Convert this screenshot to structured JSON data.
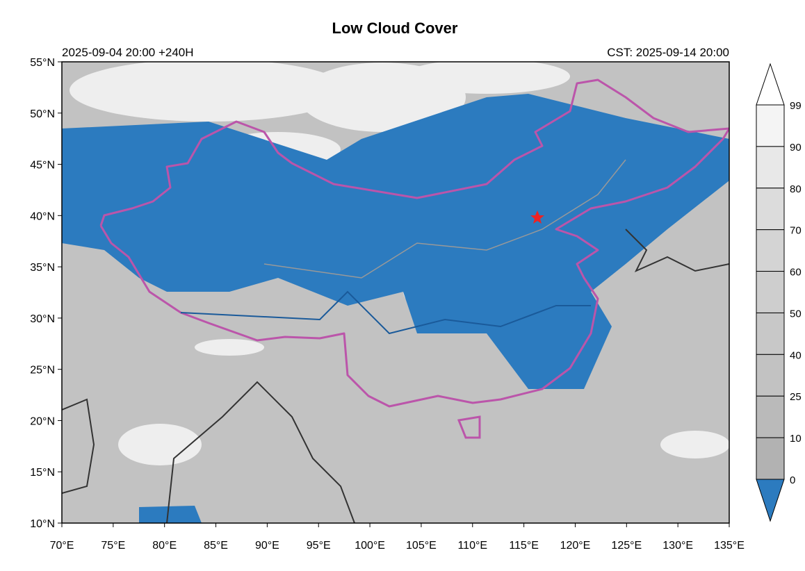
{
  "title": "Low Cloud Cover",
  "left_label": "2025-09-04 20:00 +240H",
  "right_label": "CST: 2025-09-14 20:00",
  "map": {
    "lat_labels": [
      "55°N",
      "50°N",
      "45°N",
      "40°N",
      "35°N",
      "30°N",
      "25°N",
      "20°N",
      "15°N",
      "10°N"
    ],
    "lon_labels": [
      "70°E",
      "75°E",
      "80°E",
      "85°E",
      "90°E",
      "95°E",
      "100°E",
      "105°E",
      "110°E",
      "115°E",
      "120°E",
      "125°E",
      "130°E",
      "135°E"
    ]
  },
  "colorbar": {
    "labels": [
      "99",
      "90",
      "80",
      "70",
      "60",
      "50",
      "40",
      "25",
      "10",
      "0"
    ]
  }
}
